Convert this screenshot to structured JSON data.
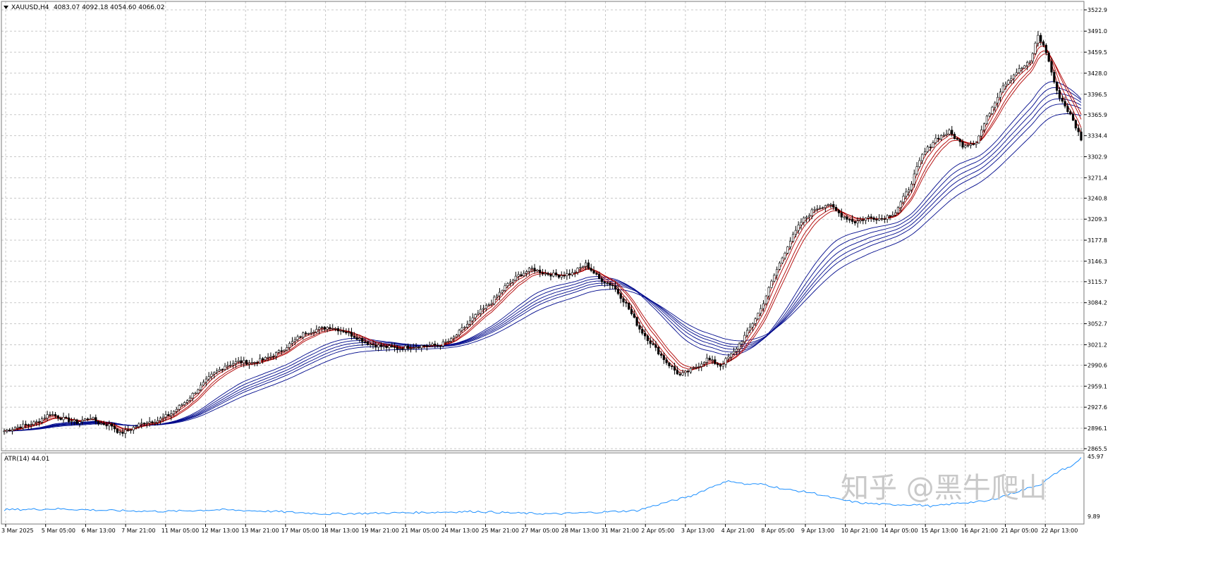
{
  "header": {
    "symbol": "XAUUSD,H4",
    "ohlc": "4083.07 4092.18 4054.60 4066.02",
    "marker_icon": "triangle-down-icon"
  },
  "indicator": {
    "label": "ATR(14) 44.01",
    "scale_top": "45.97",
    "scale_bottom": "9.89"
  },
  "watermark": "知乎 @黑牛爬山",
  "colors": {
    "background": "#ffffff",
    "grid": "#c8c8c8",
    "candle": "#000000",
    "fast_ema": "#b00000",
    "slow_ema": "#000a8c",
    "atr_line": "#1e90ff",
    "frame": "#7a7a7a"
  },
  "chart_data": [
    {
      "type": "candlestick",
      "title": "XAUUSD,H4",
      "y_ticks": [
        "3522.9",
        "3491.0",
        "3459.5",
        "3428.0",
        "3396.5",
        "3365.9",
        "3334.4",
        "3302.9",
        "3271.4",
        "3240.8",
        "3209.3",
        "3177.8",
        "3146.3",
        "3115.7",
        "3084.2",
        "3052.7",
        "3021.2",
        "2990.6",
        "2959.1",
        "2927.6",
        "2896.1",
        "2865.5"
      ],
      "x_ticks": [
        "3 Mar 2025",
        "5 Mar 05:00",
        "6 Mar 13:00",
        "7 Mar 21:00",
        "11 Mar 05:00",
        "12 Mar 13:00",
        "13 Mar 21:00",
        "17 Mar 05:00",
        "18 Mar 13:00",
        "19 Mar 21:00",
        "21 Mar 05:00",
        "24 Mar 13:00",
        "25 Mar 21:00",
        "27 Mar 05:00",
        "28 Mar 13:00",
        "31 Mar 21:00",
        "2 Apr 05:00",
        "3 Apr 13:00",
        "4 Apr 21:00",
        "8 Apr 05:00",
        "9 Apr 13:00",
        "10 Apr 21:00",
        "14 Apr 05:00",
        "15 Apr 13:00",
        "16 Apr 21:00",
        "21 Apr 05:00",
        "22 Apr 13:00"
      ],
      "ylim": [
        2865.5,
        3522.9
      ],
      "grid": true,
      "close_path": [
        [
          0,
          2892
        ],
        [
          5,
          2898
        ],
        [
          12,
          2905
        ],
        [
          17,
          2918
        ],
        [
          22,
          2910
        ],
        [
          27,
          2905
        ],
        [
          32,
          2912
        ],
        [
          35,
          2904
        ],
        [
          40,
          2900
        ],
        [
          43,
          2888
        ],
        [
          47,
          2895
        ],
        [
          52,
          2905
        ],
        [
          57,
          2908
        ],
        [
          62,
          2918
        ],
        [
          67,
          2935
        ],
        [
          72,
          2955
        ],
        [
          77,
          2975
        ],
        [
          82,
          2990
        ],
        [
          87,
          2996
        ],
        [
          92,
          2994
        ],
        [
          97,
          3000
        ],
        [
          102,
          3010
        ],
        [
          107,
          3025
        ],
        [
          112,
          3040
        ],
        [
          117,
          3045
        ],
        [
          121,
          3048
        ],
        [
          126,
          3042
        ],
        [
          131,
          3032
        ],
        [
          136,
          3022
        ],
        [
          141,
          3018
        ],
        [
          146,
          3016
        ],
        [
          151,
          3018
        ],
        [
          156,
          3020
        ],
        [
          161,
          3020
        ],
        [
          166,
          3028
        ],
        [
          171,
          3048
        ],
        [
          176,
          3068
        ],
        [
          181,
          3085
        ],
        [
          186,
          3108
        ],
        [
          191,
          3125
        ],
        [
          196,
          3135
        ],
        [
          201,
          3128
        ],
        [
          206,
          3125
        ],
        [
          211,
          3128
        ],
        [
          216,
          3142
        ],
        [
          221,
          3120
        ],
        [
          226,
          3110
        ],
        [
          231,
          3082
        ],
        [
          236,
          3045
        ],
        [
          241,
          3020
        ],
        [
          246,
          2995
        ],
        [
          251,
          2975
        ],
        [
          256,
          2985
        ],
        [
          261,
          3000
        ],
        [
          266,
          2990
        ],
        [
          271,
          3010
        ],
        [
          276,
          3040
        ],
        [
          281,
          3075
        ],
        [
          286,
          3125
        ],
        [
          291,
          3170
        ],
        [
          296,
          3205
        ],
        [
          301,
          3225
        ],
        [
          306,
          3232
        ],
        [
          311,
          3215
        ],
        [
          316,
          3205
        ],
        [
          321,
          3212
        ],
        [
          326,
          3210
        ],
        [
          331,
          3220
        ],
        [
          336,
          3255
        ],
        [
          341,
          3305
        ],
        [
          346,
          3330
        ],
        [
          351,
          3340
        ],
        [
          356,
          3320
        ],
        [
          361,
          3325
        ],
        [
          366,
          3370
        ],
        [
          371,
          3410
        ],
        [
          376,
          3430
        ],
        [
          381,
          3445
        ],
        [
          384,
          3485
        ],
        [
          387,
          3460
        ],
        [
          391,
          3400
        ],
        [
          396,
          3365
        ],
        [
          400,
          3330
        ]
      ],
      "moving_averages": {
        "fast_count": 4,
        "slow_count": 6
      }
    },
    {
      "type": "line",
      "title": "ATR(14) 44.01",
      "ylim": [
        9.89,
        45.97
      ],
      "values": [
        [
          0,
          15
        ],
        [
          20,
          15.5
        ],
        [
          40,
          14.5
        ],
        [
          60,
          14
        ],
        [
          80,
          15
        ],
        [
          100,
          14
        ],
        [
          120,
          12.5
        ],
        [
          140,
          13
        ],
        [
          160,
          13.5
        ],
        [
          175,
          14
        ],
        [
          190,
          13
        ],
        [
          205,
          12.5
        ],
        [
          220,
          13.5
        ],
        [
          235,
          14.5
        ],
        [
          245,
          19
        ],
        [
          255,
          23
        ],
        [
          265,
          30
        ],
        [
          270,
          32
        ],
        [
          275,
          30
        ],
        [
          282,
          30
        ],
        [
          290,
          27
        ],
        [
          300,
          25
        ],
        [
          305,
          23
        ],
        [
          310,
          21
        ],
        [
          318,
          19
        ],
        [
          328,
          18
        ],
        [
          338,
          18
        ],
        [
          345,
          17
        ],
        [
          355,
          19
        ],
        [
          365,
          20
        ],
        [
          375,
          25
        ],
        [
          385,
          30
        ],
        [
          392,
          38
        ],
        [
          397,
          41
        ],
        [
          400,
          45.5
        ]
      ]
    }
  ]
}
